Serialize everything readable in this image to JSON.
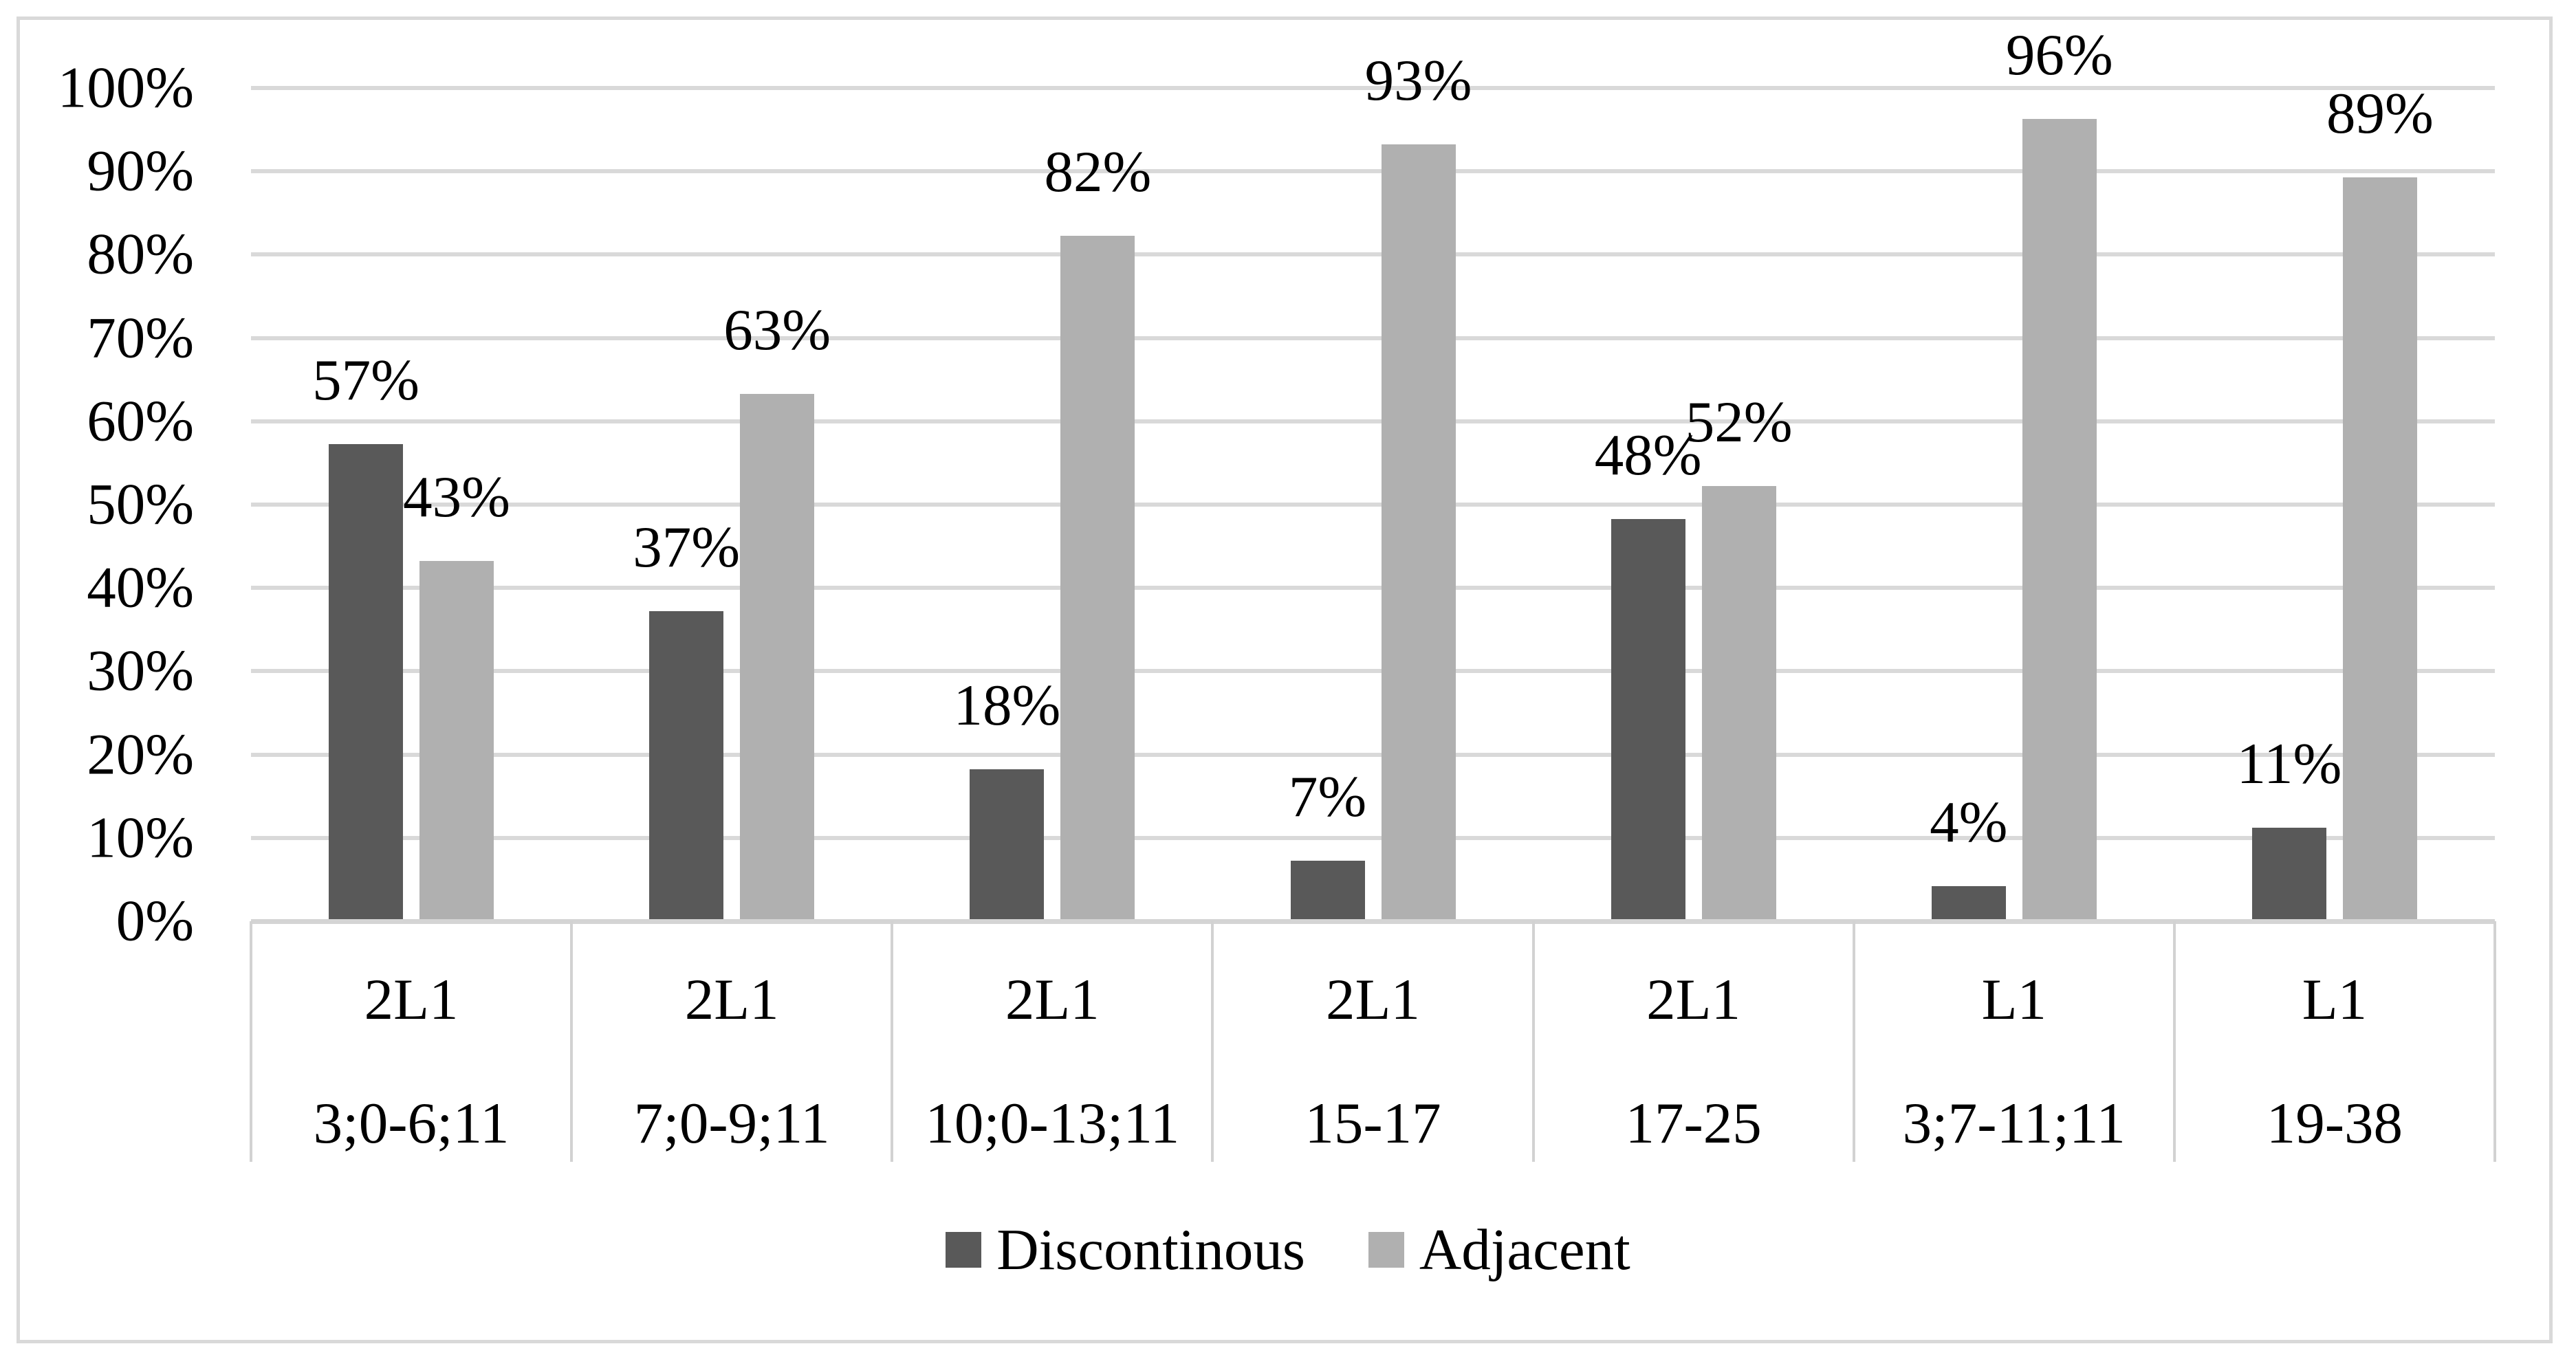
{
  "chart_data": {
    "type": "bar",
    "title": "",
    "xlabel": "",
    "ylabel": "",
    "ylim": [
      0,
      100
    ],
    "grid": true,
    "legend_position": "bottom",
    "value_label_suffix": "%",
    "y_ticks": [
      "100%",
      "90%",
      "80%",
      "70%",
      "60%",
      "50%",
      "40%",
      "30%",
      "20%",
      "10%",
      "0%"
    ],
    "categories": [
      {
        "group": "2L1",
        "age": "3;0-6;11"
      },
      {
        "group": "2L1",
        "age": "7;0-9;11"
      },
      {
        "group": "2L1",
        "age": "10;0-13;11"
      },
      {
        "group": "2L1",
        "age": "15-17"
      },
      {
        "group": "2L1",
        "age": "17-25"
      },
      {
        "group": "L1",
        "age": "3;7-11;11"
      },
      {
        "group": "L1",
        "age": "19-38"
      }
    ],
    "series": [
      {
        "name": "Discontinous",
        "color": "#595959",
        "values": [
          57,
          37,
          18,
          7,
          48,
          4,
          11
        ]
      },
      {
        "name": "Adjacent",
        "color": "#b0b0b0",
        "values": [
          43,
          63,
          82,
          93,
          52,
          96,
          89
        ]
      }
    ]
  },
  "colors": {
    "gridline": "#d9d9d9",
    "axis_line": "#d4d4d4",
    "frame_border": "#d9d9d9",
    "separator": "#d2d2d2",
    "text": "#000000"
  }
}
